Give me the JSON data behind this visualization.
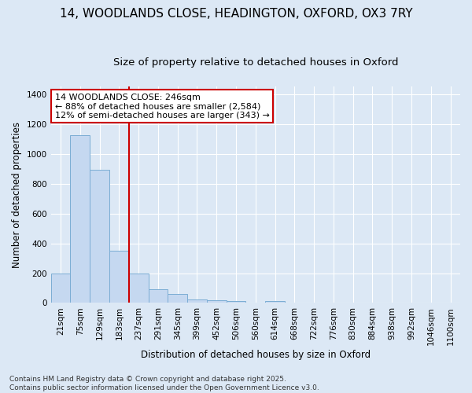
{
  "title_line1": "14, WOODLANDS CLOSE, HEADINGTON, OXFORD, OX3 7RY",
  "title_line2": "Size of property relative to detached houses in Oxford",
  "xlabel": "Distribution of detached houses by size in Oxford",
  "ylabel": "Number of detached properties",
  "categories": [
    "21sqm",
    "75sqm",
    "129sqm",
    "183sqm",
    "237sqm",
    "291sqm",
    "345sqm",
    "399sqm",
    "452sqm",
    "506sqm",
    "560sqm",
    "614sqm",
    "668sqm",
    "722sqm",
    "776sqm",
    "830sqm",
    "884sqm",
    "938sqm",
    "992sqm",
    "1046sqm",
    "1100sqm"
  ],
  "values": [
    200,
    1125,
    895,
    350,
    195,
    90,
    58,
    23,
    20,
    13,
    0,
    12,
    0,
    0,
    0,
    0,
    0,
    0,
    0,
    0,
    0
  ],
  "bar_color": "#c5d8f0",
  "bar_edge_color": "#7badd4",
  "red_line_bin": 4,
  "annotation_text_line1": "14 WOODLANDS CLOSE: 246sqm",
  "annotation_text_line2": "← 88% of detached houses are smaller (2,584)",
  "annotation_text_line3": "12% of semi-detached houses are larger (343) →",
  "annotation_box_color": "#ffffff",
  "annotation_box_edge": "#cc0000",
  "red_line_color": "#cc0000",
  "background_color": "#dce8f5",
  "grid_color": "#ffffff",
  "footer_line1": "Contains HM Land Registry data © Crown copyright and database right 2025.",
  "footer_line2": "Contains public sector information licensed under the Open Government Licence v3.0.",
  "ylim": [
    0,
    1450
  ],
  "yticks": [
    0,
    200,
    400,
    600,
    800,
    1000,
    1200,
    1400
  ],
  "title_fontsize": 11,
  "subtitle_fontsize": 9.5,
  "axis_label_fontsize": 8.5,
  "tick_fontsize": 7.5,
  "annotation_fontsize": 8,
  "footer_fontsize": 6.5
}
